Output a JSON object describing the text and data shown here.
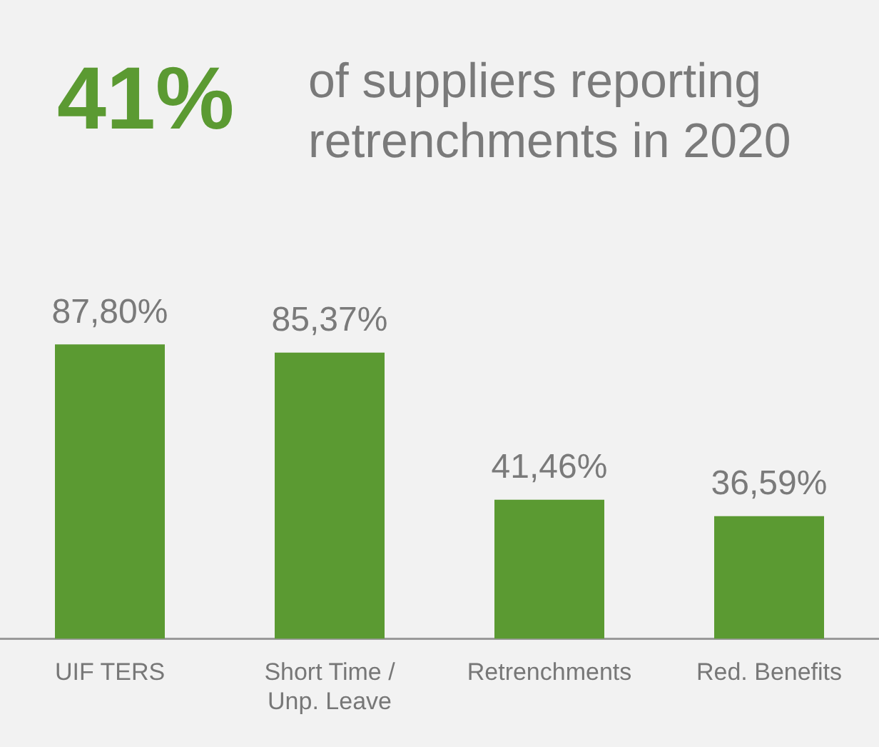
{
  "chart_data": {
    "type": "bar",
    "title": "41%",
    "subtitle": "of suppliers reporting retrenchments in 2020",
    "categories": [
      "UIF TERS",
      "Short Time / Unp. Leave",
      "Retrenchments",
      "Red. Benefits"
    ],
    "values": [
      87.8,
      85.37,
      41.46,
      36.59
    ],
    "value_labels": [
      "87,80%",
      "85,37%",
      "41,46%",
      "36,59%"
    ],
    "color": "#5b9a32",
    "grid": false,
    "legend": false
  }
}
